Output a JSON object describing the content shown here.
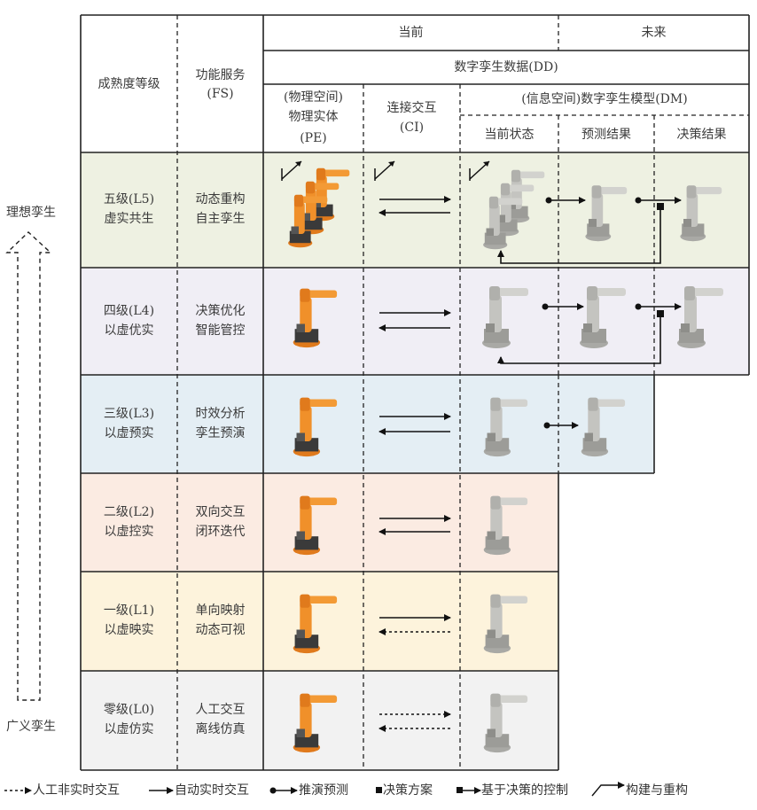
{
  "side_labels": {
    "top": "理想孪生",
    "bottom": "广义孪生"
  },
  "header": {
    "maturity": "成熟度等级",
    "fs": [
      "功能服务",
      "(FS)"
    ],
    "current": "当前",
    "future": "未来",
    "dd": "数字孪生数据(DD)",
    "pe": [
      "(物理空间)",
      "物理实体",
      "(PE)"
    ],
    "ci": [
      "连接交互",
      "(CI)"
    ],
    "dm": "(信息空间)数字孪生模型(DM)",
    "dm_current": "当前状态",
    "dm_predict": "预测结果",
    "dm_decision": "决策结果"
  },
  "levels": [
    {
      "level": "五级(L5)",
      "name": "虚实共生",
      "fs": [
        "动态重构",
        "自主孪生"
      ],
      "color": "#eef1e2"
    },
    {
      "level": "四级(L4)",
      "name": "以虚优实",
      "fs": [
        "决策优化",
        "智能管控"
      ],
      "color": "#f0eef5"
    },
    {
      "level": "三级(L3)",
      "name": "以虚预实",
      "fs": [
        "时效分析",
        "孪生预演"
      ],
      "color": "#e4eef4"
    },
    {
      "level": "二级(L2)",
      "name": "以虚控实",
      "fs": [
        "双向交互",
        "闭环迭代"
      ],
      "color": "#fbebe2"
    },
    {
      "level": "一级(L1)",
      "name": "以虚映实",
      "fs": [
        "单向映射",
        "动态可视"
      ],
      "color": "#fdf3dc"
    },
    {
      "level": "零级(L0)",
      "name": "以虚仿实",
      "fs": [
        "人工交互",
        "离线仿真"
      ],
      "color": "#f2f2f2"
    }
  ],
  "legend": [
    {
      "icon": "dotted-arrow-icon",
      "label": "人工非实时交互"
    },
    {
      "icon": "solid-arrow-icon",
      "label": "自动实时交互"
    },
    {
      "icon": "dot-arrow-icon",
      "label": "推演预测"
    },
    {
      "icon": "square-icon",
      "label": "决策方案"
    },
    {
      "icon": "square-arrow-icon",
      "label": "基于决策的控制"
    },
    {
      "icon": "construct-arrow-icon",
      "label": "构建与重构"
    }
  ],
  "colors": {
    "physical_robot": "#f0902a",
    "virtual_robot": "#b8b8b4",
    "line": "#222222"
  }
}
